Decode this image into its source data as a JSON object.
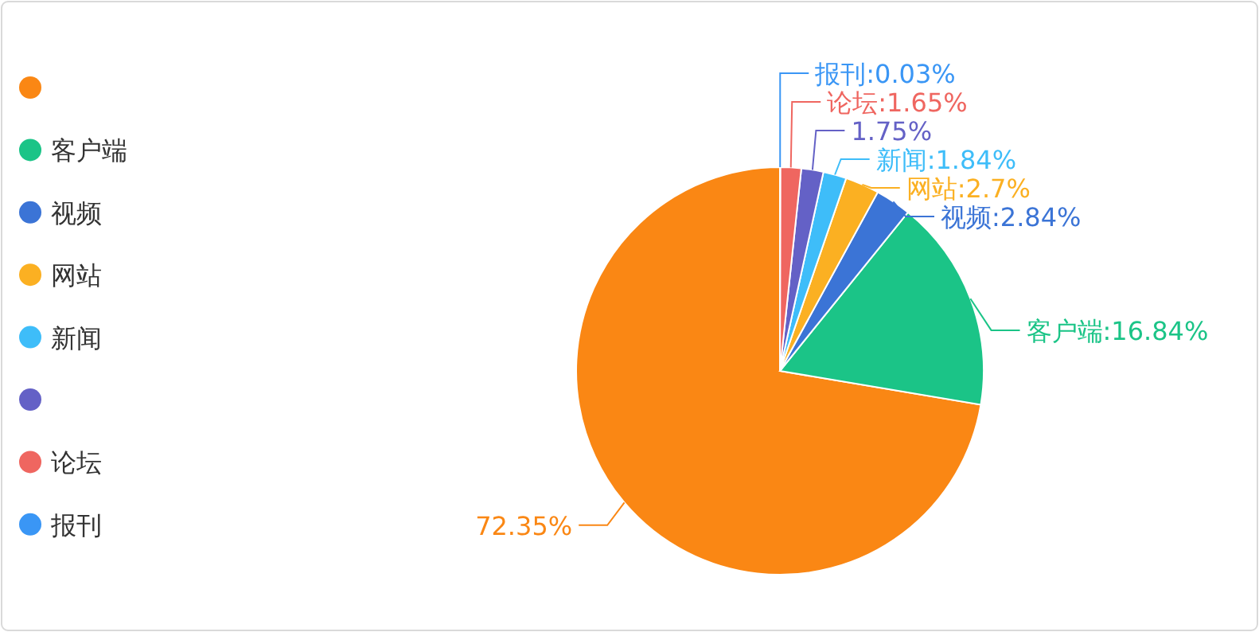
{
  "chart_data": {
    "type": "pie",
    "categories": [
      null,
      "客户端",
      "视频",
      "网站",
      "新闻",
      null,
      "论坛",
      "报刊"
    ],
    "values": [
      72.35,
      16.84,
      2.84,
      2.7,
      1.84,
      1.75,
      1.65,
      0.03
    ],
    "colors": [
      "#fa8714",
      "#1bc487",
      "#3b74d6",
      "#fbb022",
      "#3ebdf9",
      "#6461c6",
      "#ef6660",
      "#3a96f5"
    ],
    "value_labels": [
      "72.35%",
      "客户端:16.84%",
      "视频:2.84%",
      "网站:2.7%",
      "新闻:1.84%",
      "1.75%",
      "论坛:1.65%",
      "报刊:0.03%"
    ],
    "legend": "left"
  }
}
